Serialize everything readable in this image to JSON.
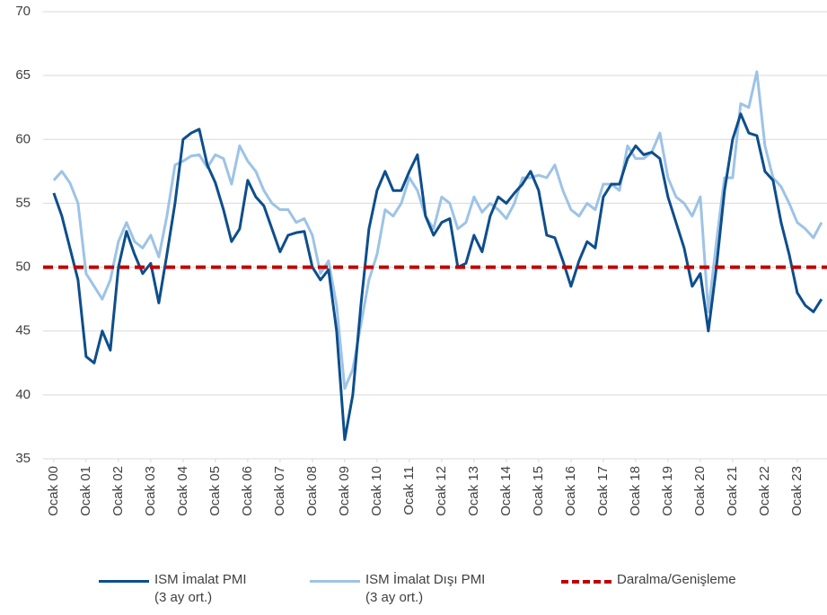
{
  "chart_data": {
    "type": "line",
    "x": [
      2000,
      2000.25,
      2000.5,
      2000.75,
      2001,
      2001.25,
      2001.5,
      2001.75,
      2002,
      2002.25,
      2002.5,
      2002.75,
      2003,
      2003.25,
      2003.5,
      2003.75,
      2004,
      2004.25,
      2004.5,
      2004.75,
      2005,
      2005.25,
      2005.5,
      2005.75,
      2006,
      2006.25,
      2006.5,
      2006.75,
      2007,
      2007.25,
      2007.5,
      2007.75,
      2008,
      2008.25,
      2008.5,
      2008.75,
      2009,
      2009.25,
      2009.5,
      2009.75,
      2010,
      2010.25,
      2010.5,
      2010.75,
      2011,
      2011.25,
      2011.5,
      2011.75,
      2012,
      2012.25,
      2012.5,
      2012.75,
      2013,
      2013.25,
      2013.5,
      2013.75,
      2014,
      2014.25,
      2014.5,
      2014.75,
      2015,
      2015.25,
      2015.5,
      2015.75,
      2016,
      2016.25,
      2016.5,
      2016.75,
      2017,
      2017.25,
      2017.5,
      2017.75,
      2018,
      2018.25,
      2018.5,
      2018.75,
      2019,
      2019.25,
      2019.5,
      2019.75,
      2020,
      2020.25,
      2020.5,
      2020.75,
      2021,
      2021.25,
      2021.5,
      2021.75,
      2022,
      2022.25,
      2022.5,
      2022.75,
      2023,
      2023.25,
      2023.5,
      2023.75
    ],
    "series": [
      {
        "name": "ISM İmalat PMI\n(3 ay ort.)",
        "color": "#0d4e8c",
        "values": [
          55.8,
          54,
          51.5,
          49,
          43,
          42.5,
          45,
          43.5,
          50,
          52.8,
          51,
          49.5,
          50.3,
          47.2,
          51,
          55,
          60,
          60.5,
          60.8,
          58,
          56.6,
          54.5,
          52,
          53,
          56.8,
          55.5,
          54.8,
          53,
          51.2,
          52.5,
          52.7,
          52.8,
          50,
          49,
          49.8,
          45,
          36.5,
          40,
          47,
          53,
          56,
          57.5,
          56,
          56,
          57.5,
          58.8,
          54,
          52.5,
          53.5,
          53.8,
          50,
          50.3,
          52.5,
          51.2,
          54,
          55.5,
          55,
          55.8,
          56.5,
          57.5,
          56,
          52.5,
          52.3,
          50.5,
          48.5,
          50.5,
          52,
          51.5,
          55.5,
          56.5,
          56.5,
          58.5,
          59.5,
          58.8,
          59,
          58.5,
          55.5,
          53.5,
          51.5,
          48.5,
          49.5,
          45,
          50,
          56,
          60,
          62,
          60.5,
          60.3,
          57.5,
          56.8,
          53.5,
          51,
          48,
          47,
          46.5,
          47.5
        ]
      },
      {
        "name": "ISM İmalat Dışı PMI\n(3 ay ort.)",
        "color": "#9dc3e6",
        "values": [
          56.8,
          57.5,
          56.6,
          55,
          49.5,
          48.5,
          47.5,
          49,
          52,
          53.5,
          52,
          51.5,
          52.5,
          50.8,
          54,
          58,
          58.3,
          58.7,
          58.8,
          57.8,
          58.8,
          58.5,
          56.5,
          59.5,
          58.3,
          57.5,
          56,
          55,
          54.5,
          54.5,
          53.5,
          53.8,
          52.5,
          49.5,
          50.5,
          47,
          40.5,
          42,
          45.5,
          49,
          51,
          54.5,
          54,
          55,
          57,
          56,
          54,
          53,
          55.5,
          55,
          53,
          53.5,
          55.5,
          54.3,
          55,
          54.5,
          53.8,
          55,
          57,
          57,
          57.2,
          57,
          58,
          56,
          54.5,
          54,
          55,
          54.5,
          56.5,
          56.5,
          56,
          59.5,
          58.5,
          58.5,
          59,
          60.5,
          57,
          55.5,
          55,
          54,
          55.5,
          46.5,
          52,
          57,
          57,
          62.8,
          62.5,
          65.3,
          59.5,
          57,
          56.3,
          55,
          53.5,
          53,
          52.3,
          53.5
        ]
      }
    ],
    "reference": {
      "name": "Daralma/Genişleme",
      "value": 50,
      "color": "#c00000"
    },
    "xlim": [
      1999.67,
      2023.92
    ],
    "xticks": [
      {
        "value": 2000,
        "label": "Ocak 00"
      },
      {
        "value": 2001,
        "label": "Ocak 01"
      },
      {
        "value": 2002,
        "label": "Ocak 02"
      },
      {
        "value": 2003,
        "label": "Ocak 03"
      },
      {
        "value": 2004,
        "label": "Ocak 04"
      },
      {
        "value": 2005,
        "label": "Ocak 05"
      },
      {
        "value": 2006,
        "label": "Ocak 06"
      },
      {
        "value": 2007,
        "label": "Ocak 07"
      },
      {
        "value": 2008,
        "label": "Ocak 08"
      },
      {
        "value": 2009,
        "label": "Ocak 09"
      },
      {
        "value": 2010,
        "label": "Ocak 10"
      },
      {
        "value": 2011,
        "label": "Ocak 11"
      },
      {
        "value": 2012,
        "label": "Ocak 12"
      },
      {
        "value": 2013,
        "label": "Ocak 13"
      },
      {
        "value": 2014,
        "label": "Ocak 14"
      },
      {
        "value": 2015,
        "label": "Ocak 15"
      },
      {
        "value": 2016,
        "label": "Ocak 16"
      },
      {
        "value": 2017,
        "label": "Ocak 17"
      },
      {
        "value": 2018,
        "label": "Ocak 18"
      },
      {
        "value": 2019,
        "label": "Ocak 19"
      },
      {
        "value": 2020,
        "label": "Ocak 20"
      },
      {
        "value": 2021,
        "label": "Ocak 21"
      },
      {
        "value": 2022,
        "label": "Ocak 22"
      },
      {
        "value": 2023,
        "label": "Ocak 23"
      }
    ],
    "ylim": [
      35,
      70
    ],
    "yticks": [
      35,
      40,
      45,
      50,
      55,
      60,
      65,
      70
    ],
    "grid": true
  }
}
